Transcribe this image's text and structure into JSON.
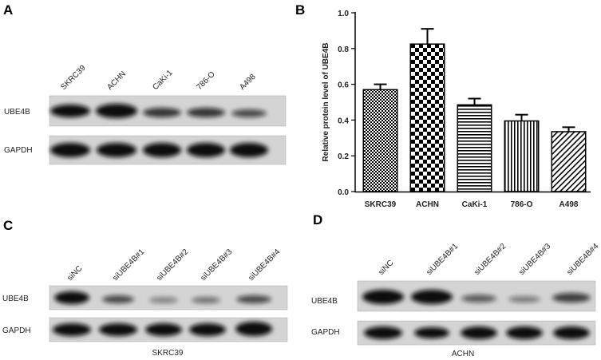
{
  "panels": {
    "A": {
      "label": "A",
      "lanes": [
        "SKRC39",
        "ACHN",
        "CaKi-1",
        "786-O",
        "A498"
      ],
      "rows": [
        "UBE4B",
        "GAPDH"
      ]
    },
    "B": {
      "label": "B"
    },
    "C": {
      "label": "C",
      "lanes": [
        "siNC",
        "siUBE4B#1",
        "siUBE4B#2",
        "siUBE4B#3",
        "siUBE4B#4"
      ],
      "rows": [
        "UBE4B",
        "GAPDH"
      ],
      "caption": "SKRC39"
    },
    "D": {
      "label": "D",
      "lanes": [
        "siNC",
        "siUBE4B#1",
        "siUBE4B#2",
        "siUBE4B#3",
        "siUBE4B#4"
      ],
      "rows": [
        "UBE4B",
        "GAPDH"
      ],
      "caption": "ACHN"
    }
  },
  "chart_data": {
    "type": "bar",
    "y_label": "Relative protein level of UBE4B",
    "categories": [
      "SKRC39",
      "ACHN",
      "CaKi-1",
      "786-O",
      "A498"
    ],
    "values": [
      0.57,
      0.825,
      0.485,
      0.395,
      0.335
    ],
    "errors": [
      0.03,
      0.085,
      0.035,
      0.035,
      0.025
    ],
    "ylim": [
      0,
      1
    ],
    "yticks": [
      {
        "value": 0,
        "label": "0.0"
      },
      0.2,
      0.4,
      0.6,
      0.8,
      {
        "value": 1,
        "label": "1.0"
      }
    ]
  }
}
